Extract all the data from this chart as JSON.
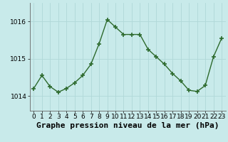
{
  "x": [
    0,
    1,
    2,
    3,
    4,
    5,
    6,
    7,
    8,
    9,
    10,
    11,
    12,
    13,
    14,
    15,
    16,
    17,
    18,
    19,
    20,
    21,
    22,
    23
  ],
  "y": [
    1014.2,
    1014.55,
    1014.25,
    1014.1,
    1014.2,
    1014.35,
    1014.55,
    1014.85,
    1015.4,
    1016.05,
    1015.85,
    1015.65,
    1015.65,
    1015.65,
    1015.25,
    1015.05,
    1014.85,
    1014.6,
    1014.4,
    1014.15,
    1014.12,
    1014.28,
    1015.05,
    1015.55
  ],
  "line_color": "#2d6a2d",
  "marker": "+",
  "markersize": 4,
  "markeredgewidth": 1.2,
  "linewidth": 1.0,
  "bg_color": "#c8eaea",
  "grid_color": "#b0d8d8",
  "xlabel": "Graphe pression niveau de la mer (hPa)",
  "xlabel_fontsize": 8,
  "xlabel_weight": "bold",
  "ylim": [
    1013.6,
    1016.5
  ],
  "yticks": [
    1014,
    1015,
    1016
  ],
  "xticks": [
    0,
    1,
    2,
    3,
    4,
    5,
    6,
    7,
    8,
    9,
    10,
    11,
    12,
    13,
    14,
    15,
    16,
    17,
    18,
    19,
    20,
    21,
    22,
    23
  ],
  "tick_fontsize": 6.5,
  "spine_color": "#666666"
}
